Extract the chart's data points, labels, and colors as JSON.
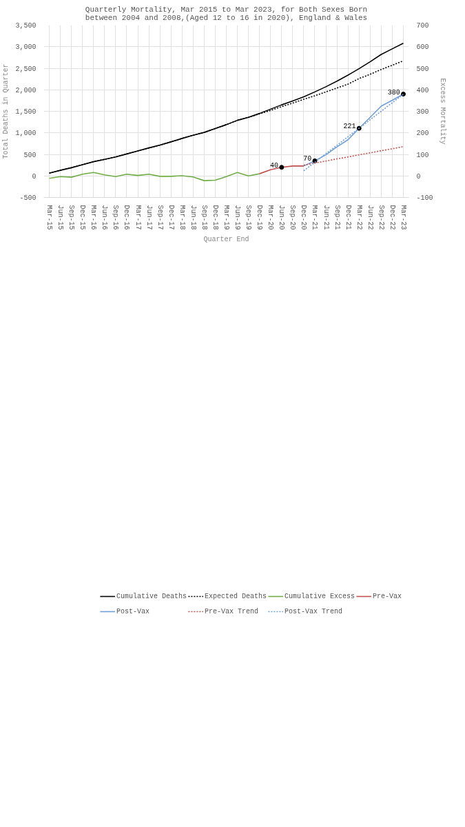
{
  "chart_data": {
    "type": "line",
    "title": "Quarterly Mortality, Mar 2015 to Mar 2023, for Both Sexes Born\nbetween 2004 and 2008,(Aged 12 to 16 in 2020), England & Wales",
    "xlabel": "Quarter End",
    "ylabel": "Total Deaths in Quarter",
    "y2label": "Excess Mortality",
    "categories": [
      "Mar-15",
      "Jun-15",
      "Sep-15",
      "Dec-15",
      "Mar-16",
      "Jun-16",
      "Sep-16",
      "Dec-16",
      "Mar-17",
      "Jun-17",
      "Sep-17",
      "Dec-17",
      "Mar-18",
      "Jun-18",
      "Sep-18",
      "Dec-18",
      "Mar-19",
      "Jun-19",
      "Sep-19",
      "Dec-19",
      "Mar-20",
      "Jun-20",
      "Sep-20",
      "Dec-20",
      "Mar-21",
      "Jun-21",
      "Sep-21",
      "Dec-21",
      "Mar-22",
      "Jun-22",
      "Sep-22",
      "Dec-22",
      "Mar-23"
    ],
    "series": [
      {
        "name": "Cumulative Deaths",
        "color": "#000000",
        "line_style": "solid",
        "values": [
          65,
          130,
          190,
          260,
          330,
          385,
          440,
          510,
          580,
          650,
          715,
          790,
          870,
          945,
          1010,
          1100,
          1190,
          1290,
          1360,
          1450,
          1550,
          1650,
          1740,
          1835,
          1950,
          2070,
          2200,
          2340,
          2490,
          2650,
          2820,
          2950,
          3080
        ]
      },
      {
        "name": "Expected Deaths",
        "color": "#000000",
        "line_style": "dotted",
        "values": [
          65,
          130,
          190,
          260,
          330,
          385,
          440,
          510,
          580,
          650,
          715,
          790,
          870,
          945,
          1010,
          1100,
          1190,
          1290,
          1360,
          1440,
          1520,
          1610,
          1690,
          1780,
          1860,
          1950,
          2040,
          2130,
          2260,
          2360,
          2470,
          2570,
          2670
        ]
      },
      {
        "name": "Cumulative Excess",
        "color": "#70ad47",
        "line_style": "solid",
        "axis": "y2",
        "values": [
          -11,
          -3,
          -6,
          8,
          16,
          5,
          -3,
          8,
          2,
          8,
          -2,
          -2,
          1,
          -5,
          -22,
          -20,
          -3,
          16,
          0,
          10,
          null,
          null,
          null,
          null,
          null,
          null,
          null,
          null,
          null,
          null,
          null,
          null,
          null
        ]
      },
      {
        "name": "Pre-Vax",
        "color": "#c0504d",
        "line_style": "solid",
        "axis": "y2",
        "values": [
          null,
          null,
          null,
          null,
          null,
          null,
          null,
          null,
          null,
          null,
          null,
          null,
          null,
          null,
          null,
          null,
          null,
          null,
          null,
          10,
          29,
          40,
          46,
          46,
          null,
          null,
          null,
          null,
          null,
          null,
          null,
          null,
          null
        ],
        "value_labels": [
          null,
          null,
          null,
          null,
          null,
          null,
          null,
          null,
          null,
          null,
          null,
          null,
          null,
          null,
          null,
          null,
          null,
          null,
          null,
          null,
          null,
          "40",
          null,
          null,
          null,
          null,
          null,
          null,
          null,
          null,
          null,
          null,
          null
        ]
      },
      {
        "name": "Post-Vax",
        "color": "#6f9fd8",
        "line_style": "solid",
        "axis": "y2",
        "values": [
          null,
          null,
          null,
          null,
          null,
          null,
          null,
          null,
          null,
          null,
          null,
          null,
          null,
          null,
          null,
          null,
          null,
          null,
          null,
          null,
          null,
          null,
          null,
          46,
          70,
          98,
          135,
          168,
          221,
          272,
          324,
          351,
          380
        ],
        "value_labels": [
          null,
          null,
          null,
          null,
          null,
          null,
          null,
          null,
          null,
          null,
          null,
          null,
          null,
          null,
          null,
          null,
          null,
          null,
          null,
          null,
          null,
          null,
          null,
          null,
          "70",
          null,
          null,
          null,
          "221",
          null,
          null,
          null,
          "380"
        ]
      },
      {
        "name": "Pre-Vax Trend",
        "color": "#c0504d",
        "line_style": "dotted",
        "axis": "y2",
        "values": [
          null,
          null,
          null,
          null,
          null,
          null,
          null,
          null,
          null,
          null,
          null,
          null,
          null,
          null,
          null,
          null,
          null,
          null,
          null,
          null,
          null,
          null,
          null,
          50,
          60,
          69,
          79,
          88,
          98,
          107,
          117,
          126,
          136
        ]
      },
      {
        "name": "Post-Vax Trend",
        "color": "#6f9fd8",
        "line_style": "dotted",
        "axis": "y2",
        "values": [
          null,
          null,
          null,
          null,
          null,
          null,
          null,
          null,
          null,
          null,
          null,
          null,
          null,
          null,
          null,
          null,
          null,
          null,
          null,
          null,
          null,
          null,
          null,
          24,
          63,
          103,
          142,
          182,
          221,
          261,
          300,
          340,
          379
        ]
      }
    ],
    "ylim": [
      -500,
      3500
    ],
    "yticks": [
      {
        "value": -500,
        "label": "-500"
      },
      0,
      500,
      {
        "value": 1000,
        "label": "1,000"
      },
      {
        "value": 1500,
        "label": "1,500"
      },
      {
        "value": 2000,
        "label": "2,000"
      },
      {
        "value": 2500,
        "label": "2,500"
      },
      {
        "value": 3000,
        "label": "3,000"
      },
      {
        "value": 3500,
        "label": "3,500"
      }
    ],
    "y2lim": [
      -100,
      700
    ],
    "y2ticks": [
      -100,
      0,
      100,
      200,
      300,
      400,
      500,
      600,
      700
    ],
    "grid": true,
    "legend": "bottom",
    "marker": "none"
  }
}
